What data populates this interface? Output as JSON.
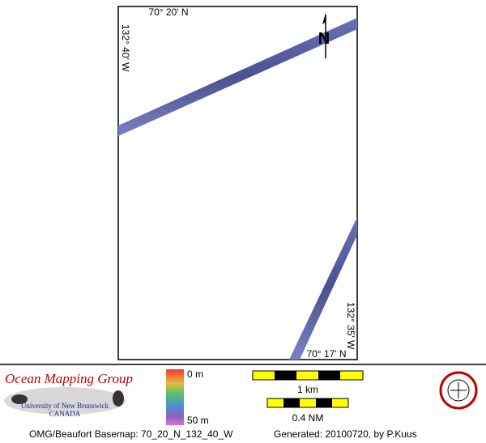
{
  "map": {
    "labels": {
      "top_latitude": "70° 20' N",
      "left_longitude": "132° 40' W",
      "north_arrow": "N",
      "right_longitude": "132° 35' W",
      "bottom_latitude": "70° 17' N"
    }
  },
  "footer": {
    "organization": "Ocean Mapping Group",
    "university": "University of New Brunswick",
    "country": "CANADA",
    "depth_scale": {
      "top": "0 m",
      "bottom": "50 m"
    },
    "distance_scale_km": "1 km",
    "distance_scale_nm": "0.4 NM",
    "basemap": "OMG/Beaufort Basemap: 70_20_N_132_40_W",
    "generated": "Generated: 20100720, by P.Kuus"
  }
}
